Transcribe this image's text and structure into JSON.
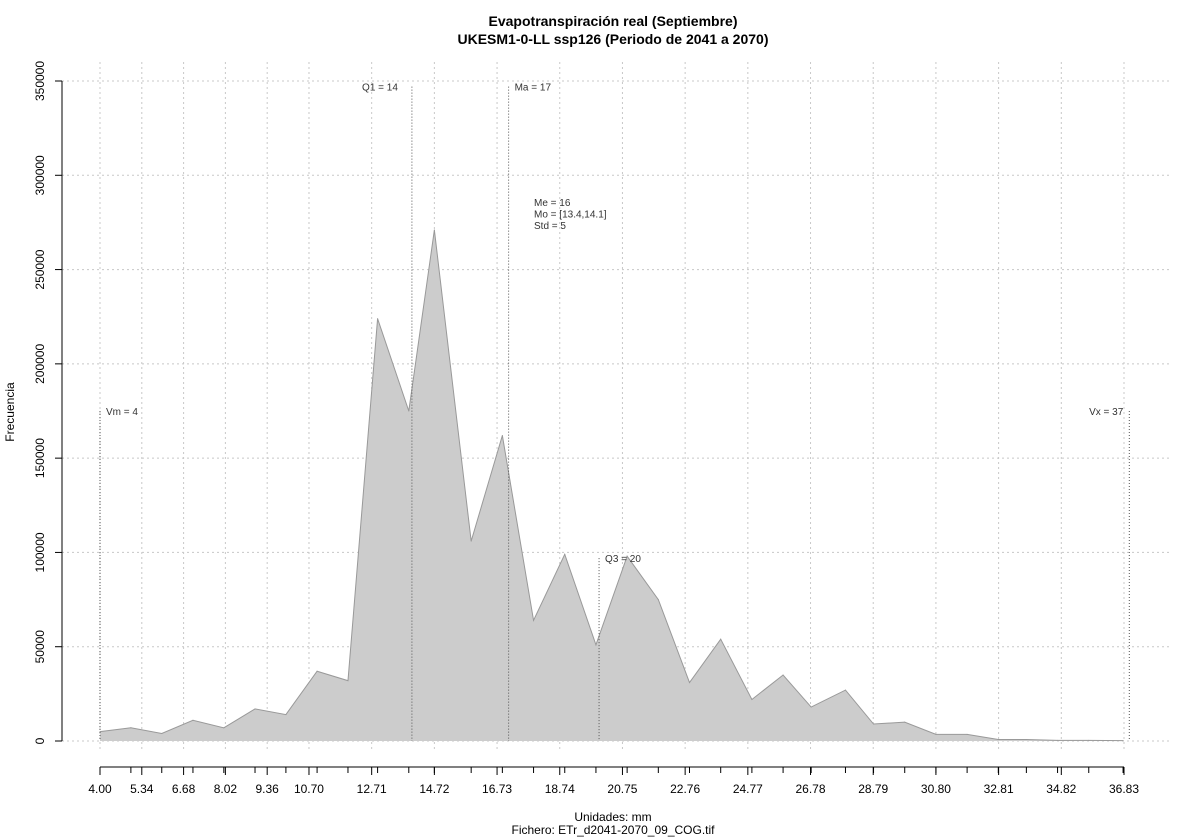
{
  "chart_data": {
    "type": "area",
    "title": "Evapotranspiración real (Septiembre)",
    "subtitle": "UKESM1-0-LL ssp126 (Periodo de 2041 a 2070)",
    "xlabel": "Unidades: mm",
    "ylabel": "Frecuencia",
    "footer": "Fichero: ETr_d2041-2070_09_COG.tif",
    "xlim": [
      4.0,
      36.83
    ],
    "ylim": [
      0,
      350000
    ],
    "grid": true,
    "fill_color": "#cccccc",
    "line_color": "#999999",
    "x_tick_labels": [
      "4.00",
      "5.34",
      "6.68",
      "8.02",
      "9.36",
      "10.70",
      "12.71",
      "14.72",
      "16.73",
      "18.74",
      "20.75",
      "22.76",
      "24.77",
      "26.78",
      "28.79",
      "30.80",
      "32.81",
      "34.82",
      "36.83"
    ],
    "y_ticks": [
      0,
      50000,
      100000,
      150000,
      200000,
      250000,
      300000,
      350000
    ],
    "y_tick_labels": [
      "0",
      "50000",
      "100000",
      "150000",
      "200000",
      "250000",
      "300000",
      "350000"
    ],
    "x": [
      4.0,
      4.99,
      5.98,
      6.98,
      7.97,
      8.97,
      9.96,
      10.96,
      11.95,
      12.9,
      13.9,
      14.72,
      15.9,
      16.9,
      17.9,
      18.9,
      19.9,
      20.9,
      21.9,
      22.9,
      23.9,
      24.9,
      25.9,
      26.8,
      27.9,
      28.8,
      29.8,
      30.8,
      31.8,
      32.8,
      33.7,
      34.7,
      35.7,
      36.8
    ],
    "y": [
      5000,
      7000,
      4000,
      11000,
      7000,
      17000,
      14000,
      37000,
      32000,
      224000,
      175000,
      271000,
      106000,
      162000,
      64000,
      99000,
      51000,
      98000,
      75000,
      31000,
      54000,
      22000,
      35000,
      18000,
      27000,
      9000,
      10000,
      3500,
      3500,
      800,
      800,
      300,
      300,
      200
    ],
    "reference_lines": [
      {
        "label": "Vm = 4",
        "x": 4.0,
        "y_top": 175000
      },
      {
        "label": "Q1 = 14",
        "x": 14.0,
        "y_top": 347000
      },
      {
        "label": "Ma = 17",
        "x": 17.1,
        "y_top": 347000
      },
      {
        "label": "Q3 = 20",
        "x": 20.0,
        "y_top": 97000
      },
      {
        "label": "Vx = 37",
        "x": 37.0,
        "y_top": 175000
      }
    ],
    "stats_text": [
      "Me = 16",
      "Mo = [13.4,14.1]",
      "Std = 5"
    ]
  }
}
